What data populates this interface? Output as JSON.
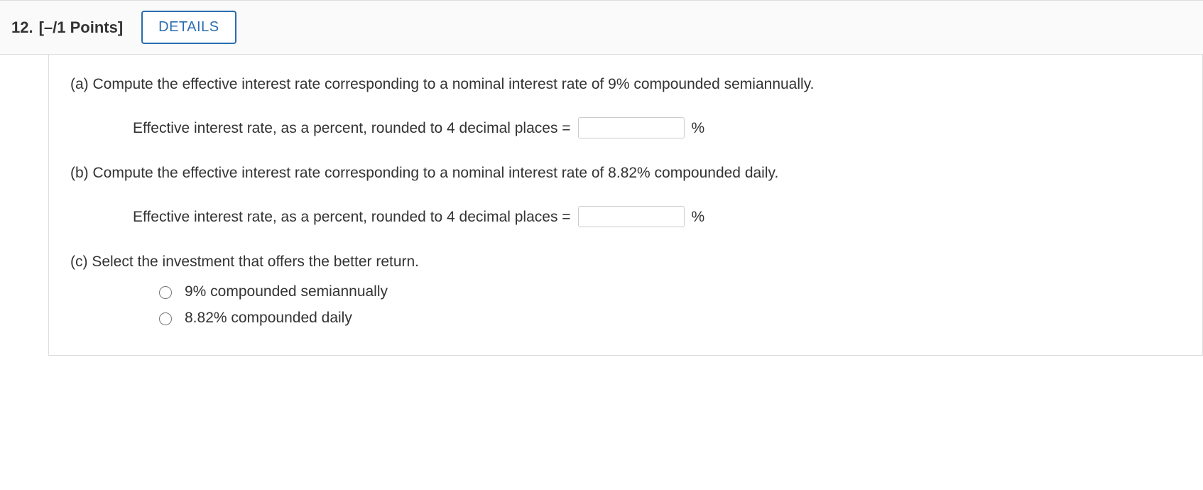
{
  "header": {
    "question_number": "12.",
    "points": "[–/1 Points]",
    "details_label": "DETAILS"
  },
  "parts": {
    "a": {
      "prompt": "(a) Compute the effective interest rate corresponding to a nominal interest rate of 9% compounded semiannually.",
      "answer_label": "Effective interest rate, as a percent, rounded to 4 decimal places =",
      "unit": "%",
      "value": ""
    },
    "b": {
      "prompt": "(b) Compute the effective interest rate corresponding to a nominal interest rate of 8.82% compounded daily.",
      "answer_label": "Effective interest rate, as a percent, rounded to 4 decimal places =",
      "unit": "%",
      "value": ""
    },
    "c": {
      "prompt": "(c) Select the investment that offers the better return.",
      "options": [
        "9% compounded semiannually",
        "8.82% compounded daily"
      ]
    }
  },
  "colors": {
    "accent": "#2b6daf",
    "text": "#333333",
    "border": "#dddddd",
    "input_border": "#cccccc",
    "header_bg": "#fafafa",
    "body_bg": "#ffffff"
  }
}
